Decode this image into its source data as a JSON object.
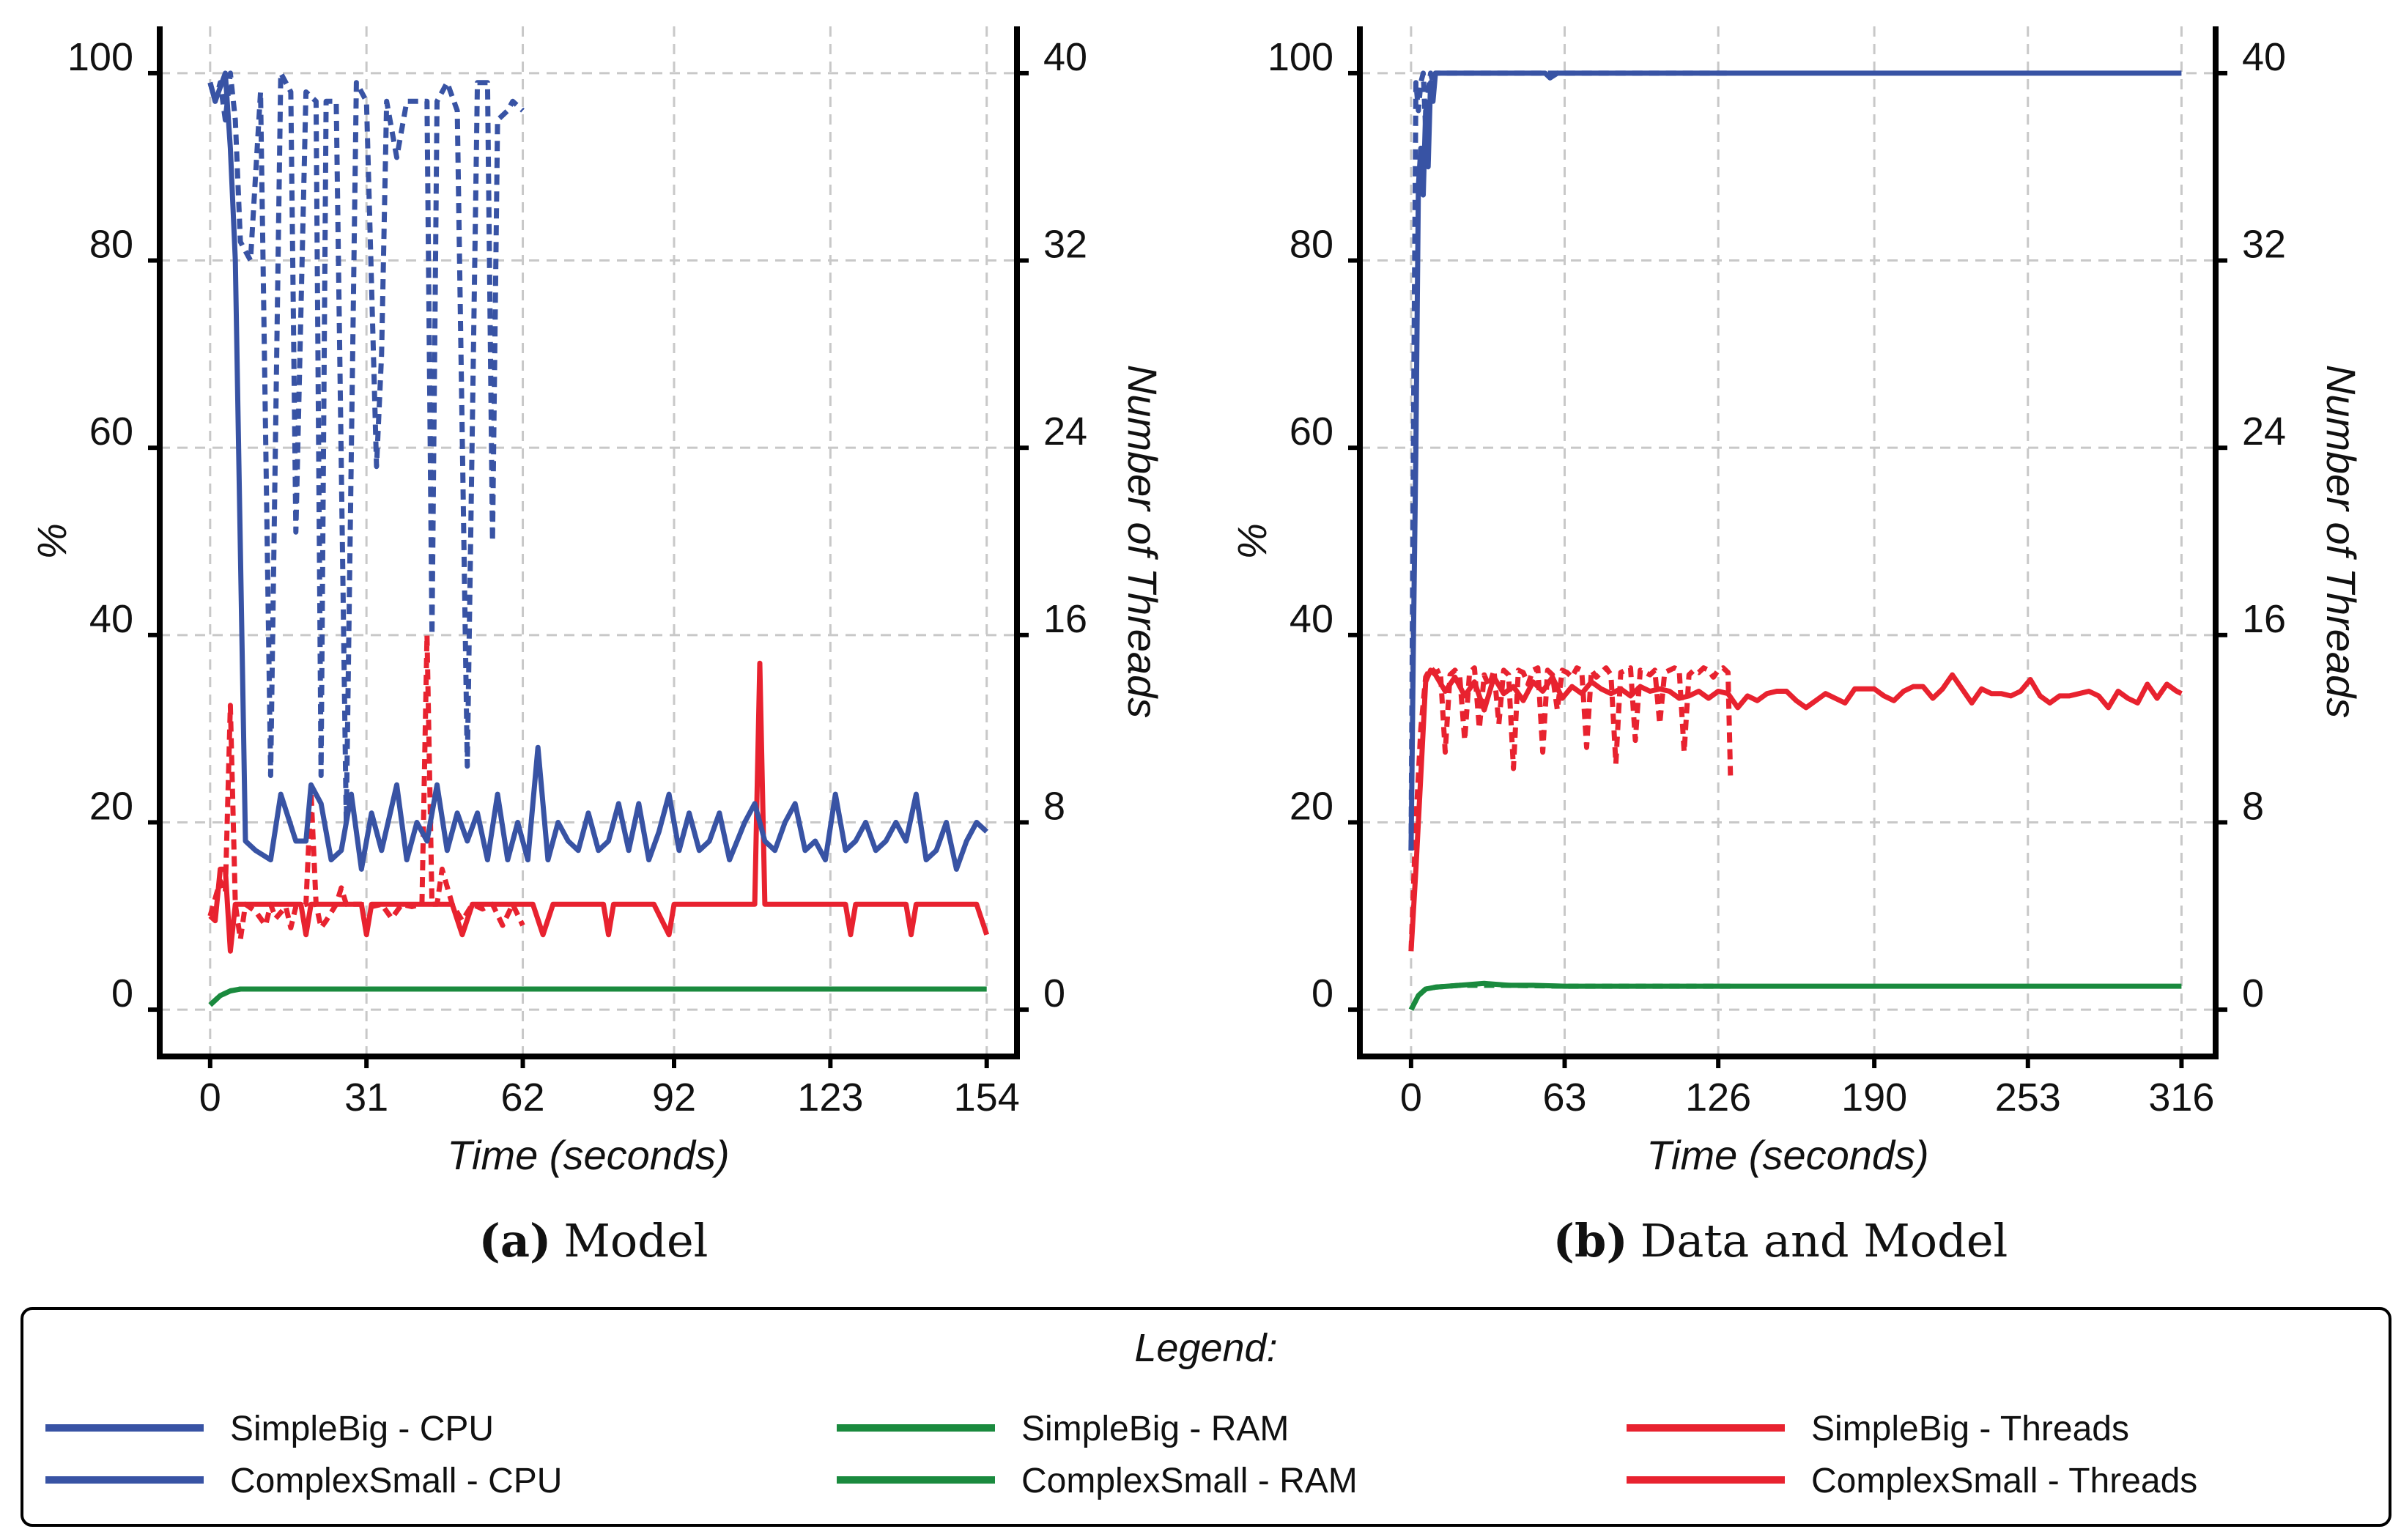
{
  "chart_data": [
    {
      "type": "line",
      "caption_letter": "(a)",
      "caption_text": "Model",
      "xlabel": "Time (seconds)",
      "ylabel_left": "%",
      "ylabel_right": "Number of Threads",
      "xlim": [
        -10,
        160
      ],
      "ylim_left": [
        -5,
        105
      ],
      "ylim_right": [
        -2,
        42
      ],
      "xticks": [
        0,
        31,
        62,
        92,
        123,
        154
      ],
      "yticks_left": [
        0,
        20,
        40,
        60,
        80,
        100
      ],
      "yticks_right": [
        0,
        8,
        16,
        24,
        32,
        40
      ],
      "grid": true,
      "series": [
        {
          "name": "SimpleBig - CPU",
          "axis": "left",
          "style": "solid",
          "color": "#3853a4",
          "x": [
            0,
            1,
            3,
            4,
            5,
            7,
            9,
            12,
            14,
            17,
            19,
            20,
            22,
            24,
            26,
            28,
            30,
            32,
            34,
            37,
            39,
            41,
            43,
            45,
            47,
            49,
            51,
            53,
            55,
            57,
            59,
            61,
            63,
            65,
            67,
            69,
            71,
            73,
            75,
            77,
            79,
            81,
            83,
            85,
            87,
            89,
            91,
            93,
            95,
            97,
            99,
            101,
            103,
            106,
            108,
            110,
            112,
            114,
            116,
            118,
            120,
            122,
            124,
            126,
            128,
            130,
            132,
            134,
            136,
            138,
            140,
            142,
            144,
            146,
            148,
            150,
            152,
            154
          ],
          "values": [
            99,
            97,
            100,
            92,
            80,
            18,
            17,
            16,
            23,
            18,
            18,
            24,
            22,
            16,
            17,
            23,
            15,
            21,
            17,
            24,
            16,
            20,
            18,
            24,
            17,
            21,
            18,
            21,
            16,
            23,
            16,
            20,
            16,
            28,
            16,
            20,
            18,
            17,
            21,
            17,
            18,
            22,
            17,
            22,
            16,
            19,
            23,
            17,
            21,
            17,
            18,
            21,
            16,
            20,
            22,
            18,
            17,
            20,
            22,
            17,
            18,
            16,
            23,
            17,
            18,
            20,
            17,
            18,
            20,
            18,
            23,
            16,
            17,
            20,
            15,
            18,
            20,
            19
          ]
        },
        {
          "name": "ComplexSmall - CPU",
          "axis": "left",
          "style": "dashed",
          "color": "#3853a4",
          "x": [
            0,
            1,
            2,
            3,
            4,
            5,
            6,
            8,
            10,
            12,
            14,
            16,
            17,
            19,
            21,
            22,
            23,
            25,
            27,
            29,
            31,
            33,
            34,
            35,
            37,
            39,
            41,
            43,
            44,
            45,
            47,
            49,
            51,
            53,
            55,
            56,
            57,
            59,
            60,
            62
          ],
          "values": [
            99,
            97,
            99,
            95,
            100,
            95,
            82,
            80,
            98,
            25,
            100,
            98,
            51,
            98,
            97,
            25,
            97,
            97,
            20,
            99,
            97,
            58,
            70,
            97,
            91,
            97,
            97,
            97,
            40,
            97,
            99,
            96,
            26,
            99,
            99,
            50,
            95,
            96,
            97,
            96
          ]
        },
        {
          "name": "SimpleBig - RAM",
          "axis": "left",
          "style": "solid",
          "color": "#1a8a3e",
          "x": [
            0,
            2,
            4,
            6,
            10,
            20,
            40,
            80,
            120,
            154
          ],
          "values": [
            0.5,
            1.5,
            2,
            2.2,
            2.2,
            2.2,
            2.2,
            2.2,
            2.2,
            2.2
          ]
        },
        {
          "name": "ComplexSmall - RAM",
          "axis": "left",
          "style": "dashed",
          "color": "#1a8a3e",
          "x": [
            0,
            2,
            4,
            6,
            10,
            20,
            40,
            62
          ],
          "values": [
            0.5,
            1.5,
            2,
            2.2,
            2.2,
            2.2,
            2.2,
            2.2
          ]
        },
        {
          "name": "SimpleBig - Threads",
          "axis": "right",
          "style": "solid",
          "color": "#e8222f",
          "x": [
            0,
            1,
            2,
            3,
            4,
            5,
            6,
            8,
            10,
            12,
            14,
            16,
            18,
            19,
            20,
            24,
            28,
            30,
            31,
            32,
            36,
            40,
            44,
            46,
            48,
            50,
            52,
            56,
            60,
            62,
            64,
            66,
            68,
            74,
            78,
            79,
            80,
            84,
            88,
            91,
            92,
            93,
            96,
            104,
            108,
            109,
            110,
            111,
            112,
            118,
            124,
            126,
            127,
            128,
            132,
            136,
            138,
            139,
            140,
            146,
            150,
            152,
            154
          ],
          "values": [
            4,
            3.8,
            6,
            6,
            2.5,
            4.5,
            4.5,
            4.5,
            4.5,
            4.5,
            4.5,
            4.5,
            4.5,
            3.2,
            4.5,
            4.5,
            4.5,
            4.5,
            3.2,
            4.5,
            4.5,
            4.5,
            4.5,
            4.5,
            4.5,
            3.2,
            4.5,
            4.5,
            4.5,
            4.5,
            4.5,
            3.2,
            4.5,
            4.5,
            4.5,
            3.2,
            4.5,
            4.5,
            4.5,
            3.2,
            4.5,
            4.5,
            4.5,
            4.5,
            4.5,
            14.8,
            4.5,
            4.5,
            4.5,
            4.5,
            4.5,
            4.5,
            3.2,
            4.5,
            4.5,
            4.5,
            4.5,
            3.2,
            4.5,
            4.5,
            4.5,
            4.5,
            3.2
          ]
        },
        {
          "name": "ComplexSmall - Threads",
          "axis": "right",
          "style": "dashed",
          "color": "#e8222f",
          "x": [
            0,
            2,
            3,
            4,
            5,
            6,
            7,
            9,
            11,
            12,
            13,
            15,
            16,
            17,
            19,
            20,
            21,
            22,
            23,
            25,
            26,
            27,
            28,
            30,
            32,
            34,
            36,
            38,
            40,
            42,
            43,
            44,
            45,
            46,
            48,
            50,
            52,
            54,
            56,
            58,
            60,
            62
          ],
          "values": [
            4,
            5.5,
            5,
            13,
            4.5,
            3,
            4.5,
            4.2,
            3.6,
            4.5,
            3.9,
            4.4,
            3.5,
            4.4,
            4.5,
            9.3,
            4.5,
            3.5,
            3.8,
            4.5,
            5.2,
            4.5,
            4.5,
            4.5,
            4.4,
            4.5,
            3.9,
            4.5,
            4.4,
            4.5,
            16,
            4.5,
            4.5,
            6,
            4.5,
            3.8,
            4.5,
            4.3,
            4.5,
            3.6,
            4.5,
            3.6
          ]
        }
      ]
    },
    {
      "type": "line",
      "caption_letter": "(b)",
      "caption_text": "Data and Model",
      "xlabel": "Time (seconds)",
      "ylabel_left": "%",
      "ylabel_right": "Number of Threads",
      "xlim": [
        -21,
        330
      ],
      "ylim_left": [
        -5,
        105
      ],
      "ylim_right": [
        -2,
        42
      ],
      "xticks": [
        0,
        63,
        126,
        190,
        253,
        316
      ],
      "yticks_left": [
        0,
        20,
        40,
        60,
        80,
        100
      ],
      "yticks_right": [
        0,
        8,
        16,
        24,
        32,
        40
      ],
      "grid": true,
      "series": [
        {
          "name": "SimpleBig - CPU",
          "axis": "left",
          "style": "solid",
          "color": "#3853a4",
          "x": [
            0,
            1,
            2,
            3,
            4,
            5,
            6,
            7,
            8,
            9,
            10,
            12,
            20,
            40,
            55,
            57,
            60,
            100,
            150,
            200,
            250,
            300,
            316
          ],
          "values": [
            17,
            40,
            60,
            88,
            92,
            87,
            96,
            90,
            99,
            97,
            100,
            100,
            100,
            100,
            100,
            99.5,
            100,
            100,
            100,
            100,
            100,
            100,
            100
          ]
        },
        {
          "name": "ComplexSmall - CPU",
          "axis": "left",
          "style": "dashed",
          "color": "#3853a4",
          "x": [
            0,
            1,
            2,
            3,
            4,
            5,
            6,
            7,
            8,
            9,
            10,
            12,
            20,
            40,
            60,
            80,
            100,
            120,
            131
          ],
          "values": [
            17,
            62,
            99,
            96,
            99,
            100,
            94,
            98,
            100,
            99,
            100,
            100,
            100,
            100,
            100,
            100,
            100,
            100,
            100
          ]
        },
        {
          "name": "SimpleBig - RAM",
          "axis": "left",
          "style": "solid",
          "color": "#1a8a3e",
          "x": [
            0,
            3,
            6,
            10,
            20,
            30,
            40,
            50,
            63,
            100,
            126,
            190,
            253,
            316
          ],
          "values": [
            0,
            1.5,
            2.2,
            2.4,
            2.6,
            2.8,
            2.6,
            2.6,
            2.5,
            2.5,
            2.5,
            2.5,
            2.5,
            2.5
          ]
        },
        {
          "name": "ComplexSmall - RAM",
          "axis": "left",
          "style": "dashed",
          "color": "#1a8a3e",
          "x": [
            0,
            3,
            6,
            10,
            20,
            40,
            63,
            100,
            131
          ],
          "values": [
            0,
            1.5,
            2.2,
            2.4,
            2.6,
            2.6,
            2.5,
            2.5,
            2.5
          ]
        },
        {
          "name": "SimpleBig - Threads",
          "axis": "right",
          "style": "solid",
          "color": "#e8222f",
          "x": [
            0,
            2,
            4,
            6,
            8,
            10,
            14,
            18,
            22,
            26,
            30,
            34,
            38,
            42,
            46,
            50,
            54,
            58,
            62,
            66,
            70,
            74,
            78,
            82,
            86,
            90,
            94,
            98,
            102,
            106,
            110,
            114,
            118,
            122,
            126,
            130,
            134,
            138,
            142,
            146,
            150,
            154,
            158,
            162,
            166,
            170,
            174,
            178,
            182,
            186,
            190,
            194,
            198,
            202,
            206,
            210,
            214,
            218,
            222,
            226,
            230,
            234,
            238,
            242,
            246,
            250,
            254,
            258,
            262,
            266,
            270,
            274,
            278,
            282,
            286,
            290,
            294,
            298,
            302,
            306,
            310,
            314,
            316
          ],
          "values": [
            2.5,
            6,
            10,
            14,
            14.5,
            14.3,
            13.6,
            14.2,
            13.4,
            14,
            12.8,
            14.2,
            13.5,
            13.8,
            13.2,
            14,
            13.6,
            14.2,
            13.3,
            13.8,
            13.5,
            14,
            13.7,
            13.5,
            13.7,
            13.4,
            13.8,
            13.6,
            13.7,
            13.6,
            13.3,
            13.4,
            13.6,
            13.3,
            13.6,
            13.5,
            12.9,
            13.4,
            13.2,
            13.5,
            13.6,
            13.6,
            13.2,
            12.9,
            13.2,
            13.5,
            13.3,
            13.1,
            13.7,
            13.7,
            13.7,
            13.4,
            13.2,
            13.6,
            13.8,
            13.8,
            13.3,
            13.7,
            14.3,
            13.7,
            13.1,
            13.7,
            13.5,
            13.5,
            13.4,
            13.6,
            14.1,
            13.4,
            13.1,
            13.4,
            13.4,
            13.5,
            13.6,
            13.4,
            12.9,
            13.6,
            13.3,
            13.1,
            13.9,
            13.3,
            13.9,
            13.6,
            13.5
          ]
        },
        {
          "name": "ComplexSmall - Threads",
          "axis": "right",
          "style": "dashed",
          "color": "#e8222f",
          "x": [
            0,
            2,
            4,
            6,
            8,
            10,
            12,
            14,
            16,
            18,
            20,
            22,
            24,
            26,
            28,
            30,
            32,
            34,
            36,
            38,
            40,
            42,
            44,
            46,
            48,
            50,
            52,
            54,
            56,
            58,
            60,
            62,
            64,
            66,
            68,
            70,
            72,
            74,
            76,
            78,
            80,
            82,
            84,
            86,
            88,
            90,
            92,
            94,
            96,
            98,
            100,
            102,
            104,
            106,
            108,
            110,
            112,
            114,
            116,
            118,
            120,
            122,
            124,
            126,
            128,
            130,
            131
          ],
          "values": [
            2.5,
            8,
            12,
            14.2,
            14.6,
            14.4,
            14.5,
            11,
            14.3,
            14.5,
            14.2,
            11.5,
            14.4,
            14.6,
            12,
            14.3,
            13.8,
            14.5,
            12.2,
            14.5,
            14.3,
            10.3,
            14.5,
            14.4,
            13.9,
            14.5,
            14.6,
            11,
            14.5,
            14.3,
            12.8,
            14.5,
            14.4,
            14.2,
            14.6,
            14.5,
            11.2,
            14.5,
            14.2,
            14.4,
            14.6,
            14.3,
            10.5,
            14.4,
            14.5,
            14.6,
            11.5,
            14.5,
            14.4,
            14.3,
            14.5,
            12.2,
            14.4,
            14.5,
            14.6,
            14.5,
            11,
            14.3,
            14.5,
            14.4,
            14.6,
            14.5,
            14.2,
            14.5,
            14.6,
            14.4,
            10
          ]
        }
      ]
    }
  ],
  "legend": {
    "title": "Legend:",
    "items": [
      {
        "label": "SimpleBig - CPU",
        "color": "#3853a4"
      },
      {
        "label": "ComplexSmall - CPU",
        "color": "#3853a4"
      },
      {
        "label": "SimpleBig - RAM",
        "color": "#1a8a3e"
      },
      {
        "label": "ComplexSmall - RAM",
        "color": "#1a8a3e"
      },
      {
        "label": "SimpleBig - Threads",
        "color": "#e8222f"
      },
      {
        "label": "ComplexSmall - Threads",
        "color": "#e8222f"
      }
    ]
  }
}
